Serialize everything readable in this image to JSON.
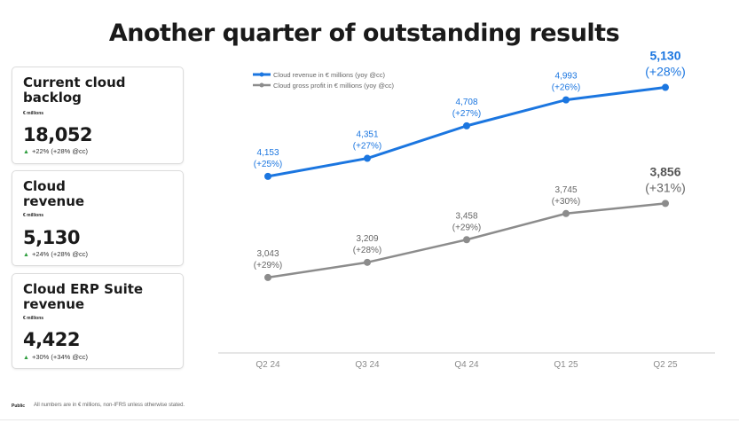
{
  "page": {
    "title": "Another quarter of outstanding results",
    "footer_tag": "Public",
    "footer_note": "All numbers are in € millions, non-IFRS unless otherwise stated."
  },
  "kpis": [
    {
      "title": "Current cloud backlog",
      "unit": "€ millions",
      "value": "18,052",
      "growth": "+22% (+28% @cc)"
    },
    {
      "title": "Cloud revenue",
      "unit": "€ millions",
      "value": "5,130",
      "growth": "+24% (+28% @cc)"
    },
    {
      "title": "Cloud ERP Suite revenue",
      "unit": "€ millions",
      "value": "4,422",
      "growth": "+30% (+34% @cc)"
    }
  ],
  "colors": {
    "blue": "#1b76e0",
    "gray": "#8c8c8c",
    "axis": "#cccccc",
    "tick": "#8a8a8a"
  },
  "chart_data": {
    "type": "line",
    "categories": [
      "Q2 24",
      "Q3 24",
      "Q4 24",
      "Q1 25",
      "Q2 25"
    ],
    "series": [
      {
        "name": "Cloud revenue in € millions (yoy @cc)",
        "color": "#1b76e0",
        "values": [
          4153,
          4351,
          4708,
          4993,
          5130
        ],
        "labels": [
          "4,153",
          "4,351",
          "4,708",
          "4,993",
          "5,130"
        ],
        "growth": [
          "(+25%)",
          "(+27%)",
          "(+27%)",
          "(+26%)",
          "(+28%)"
        ]
      },
      {
        "name": "Cloud gross profit in € millions (yoy @cc)",
        "color": "#8c8c8c",
        "values": [
          3043,
          3209,
          3458,
          3745,
          3856
        ],
        "labels": [
          "3,043",
          "3,209",
          "3,458",
          "3,745",
          "3,856"
        ],
        "growth": [
          "(+29%)",
          "(+28%)",
          "(+29%)",
          "(+30%)",
          "(+31%)"
        ]
      }
    ],
    "ylim": [
      2000,
      5700
    ],
    "legend": "top-left",
    "grid": false
  }
}
